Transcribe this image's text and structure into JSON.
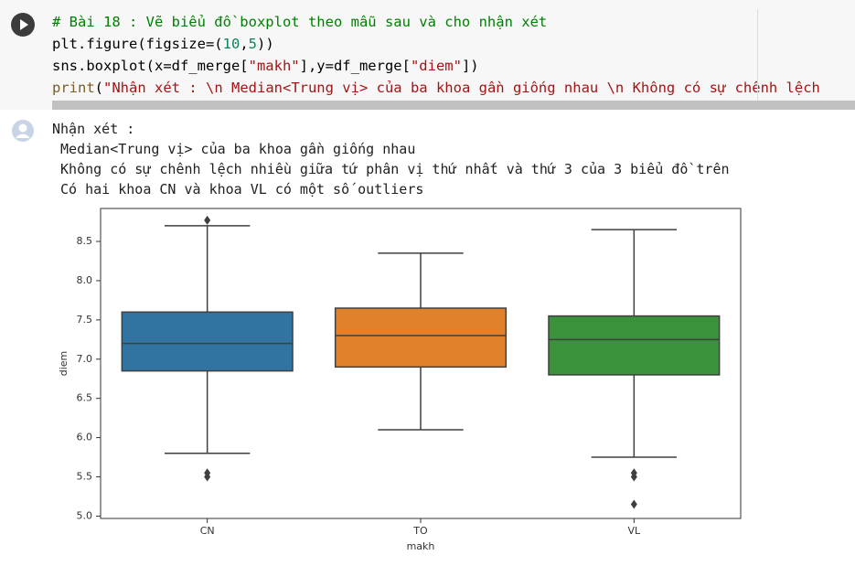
{
  "code": {
    "lines": [
      [
        {
          "text": "# Bài 18 : Vẽ biểu đồ boxplot theo mẫu sau và cho nhận xét",
          "color": "#008000"
        }
      ],
      [
        {
          "text": "plt.figure(figsize=(",
          "color": "#000000"
        },
        {
          "text": "10",
          "color": "#098658"
        },
        {
          "text": ",",
          "color": "#000000"
        },
        {
          "text": "5",
          "color": "#098658"
        },
        {
          "text": "))",
          "color": "#000000"
        }
      ],
      [
        {
          "text": "sns.boxplot(x=df_merge[",
          "color": "#000000"
        },
        {
          "text": "\"makh\"",
          "color": "#a31515"
        },
        {
          "text": "],y=df_merge[",
          "color": "#000000"
        },
        {
          "text": "\"diem\"",
          "color": "#a31515"
        },
        {
          "text": "])",
          "color": "#000000"
        }
      ],
      [
        {
          "text": "print",
          "color": "#795e26"
        },
        {
          "text": "(",
          "color": "#000000"
        },
        {
          "text": "\"Nhận xét : \\n Median<Trung vị> của ba khoa gần giống nhau \\n Không có sự chênh lệch",
          "color": "#a31515"
        }
      ]
    ]
  },
  "output": {
    "lines": [
      "Nhận xét :",
      " Median<Trung vị> của ba khoa gần giống nhau",
      " Không có sự chênh lệch nhiều giữa tứ phân vị thứ nhất và thứ 3 của 3 biểu đồ trên",
      " Có hai khoa CN và khoa VL có một số outliers"
    ]
  },
  "chart_data": {
    "type": "boxplot",
    "x_label": "makh",
    "y_label": "diem",
    "categories": [
      "CN",
      "TO",
      "VL"
    ],
    "colors": [
      "#3274a1",
      "#e1812c",
      "#3a923a"
    ],
    "boxes": [
      {
        "whislo": 5.8,
        "q1": 6.85,
        "median": 7.2,
        "q3": 7.6,
        "whishi": 8.7,
        "fliers": [
          5.5,
          5.55,
          8.77
        ]
      },
      {
        "whislo": 6.1,
        "q1": 6.9,
        "median": 7.3,
        "q3": 7.65,
        "whishi": 8.35,
        "fliers": []
      },
      {
        "whislo": 5.75,
        "q1": 6.8,
        "median": 7.25,
        "q3": 7.55,
        "whishi": 8.65,
        "fliers": [
          5.5,
          5.55,
          5.15
        ]
      }
    ],
    "ylim": [
      4.97,
      8.92
    ],
    "yticks": [
      {
        "value": 5,
        "label": "5.0"
      },
      {
        "value": 5.5,
        "label": "5.5"
      },
      {
        "value": 6,
        "label": "6.0"
      },
      {
        "value": 6.5,
        "label": "6.5"
      },
      {
        "value": 7,
        "label": "7.0"
      },
      {
        "value": 7.5,
        "label": "7.5"
      },
      {
        "value": 8,
        "label": "8.0"
      },
      {
        "value": 8.5,
        "label": "8.5"
      }
    ]
  }
}
